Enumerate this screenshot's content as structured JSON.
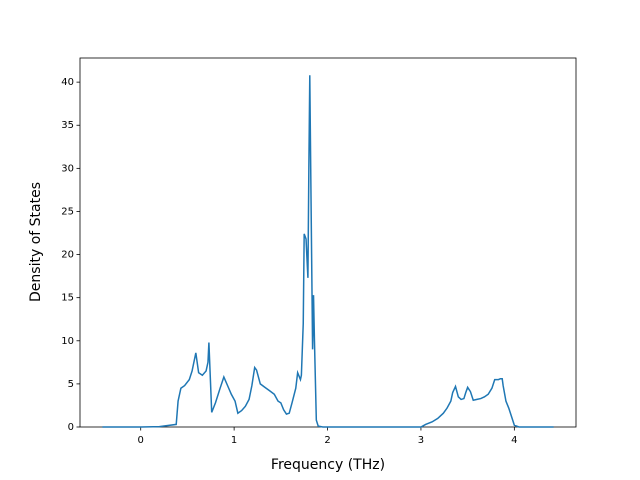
{
  "chart_data": {
    "type": "line",
    "xlabel": "Frequency (THz)",
    "ylabel": "Density of States",
    "x": [
      -0.41,
      0.0,
      0.2,
      0.38,
      0.4,
      0.43,
      0.47,
      0.52,
      0.55,
      0.59,
      0.62,
      0.66,
      0.7,
      0.72,
      0.73,
      0.76,
      0.8,
      0.85,
      0.89,
      0.93,
      0.97,
      1.01,
      1.04,
      1.08,
      1.12,
      1.16,
      1.19,
      1.22,
      1.24,
      1.28,
      1.33,
      1.38,
      1.43,
      1.47,
      1.5,
      1.53,
      1.56,
      1.59,
      1.62,
      1.66,
      1.68,
      1.71,
      1.72,
      1.74,
      1.75,
      1.77,
      1.78,
      1.79,
      1.8,
      1.81,
      1.82,
      1.84,
      1.85,
      1.86,
      1.88,
      1.9,
      1.95,
      3.0,
      3.05,
      3.12,
      3.18,
      3.24,
      3.28,
      3.32,
      3.34,
      3.37,
      3.4,
      3.43,
      3.46,
      3.48,
      3.5,
      3.53,
      3.56,
      3.6,
      3.64,
      3.68,
      3.72,
      3.76,
      3.79,
      3.83,
      3.85,
      3.87,
      3.88,
      3.91,
      3.94,
      3.97,
      4.0,
      4.05,
      4.42
    ],
    "series": [
      {
        "color": "#1f77b4",
        "values": [
          0,
          0,
          0.05,
          0.3,
          3,
          4.5,
          4.8,
          5.5,
          6.5,
          8.6,
          6.3,
          6.0,
          6.5,
          7.5,
          9.8,
          1.7,
          2.8,
          4.5,
          5.8,
          4.8,
          3.8,
          3.0,
          1.6,
          1.9,
          2.4,
          3.2,
          4.8,
          6.9,
          6.6,
          5.0,
          4.6,
          4.2,
          3.8,
          3.0,
          2.8,
          2.0,
          1.5,
          1.6,
          2.8,
          4.5,
          6.3,
          5.5,
          6.0,
          12,
          22.4,
          21.8,
          19.5,
          17.3,
          30,
          40.8,
          30,
          9,
          15.3,
          10,
          0.8,
          0.1,
          0,
          0,
          0.3,
          0.6,
          1.0,
          1.6,
          2.2,
          3.0,
          4.0,
          4.7,
          3.5,
          3.2,
          3.3,
          4.0,
          4.6,
          4.1,
          3.1,
          3.2,
          3.3,
          3.5,
          3.8,
          4.5,
          5.5,
          5.5,
          5.6,
          5.6,
          4.8,
          3.0,
          2.2,
          1.2,
          0.2,
          0,
          0
        ]
      }
    ],
    "xlim": [
      -0.65,
      4.66
    ],
    "ylim": [
      0,
      42.8
    ],
    "xticks": [
      0,
      1,
      2,
      3,
      4
    ],
    "yticks": [
      0,
      5,
      10,
      15,
      20,
      25,
      30,
      35,
      40
    ]
  }
}
